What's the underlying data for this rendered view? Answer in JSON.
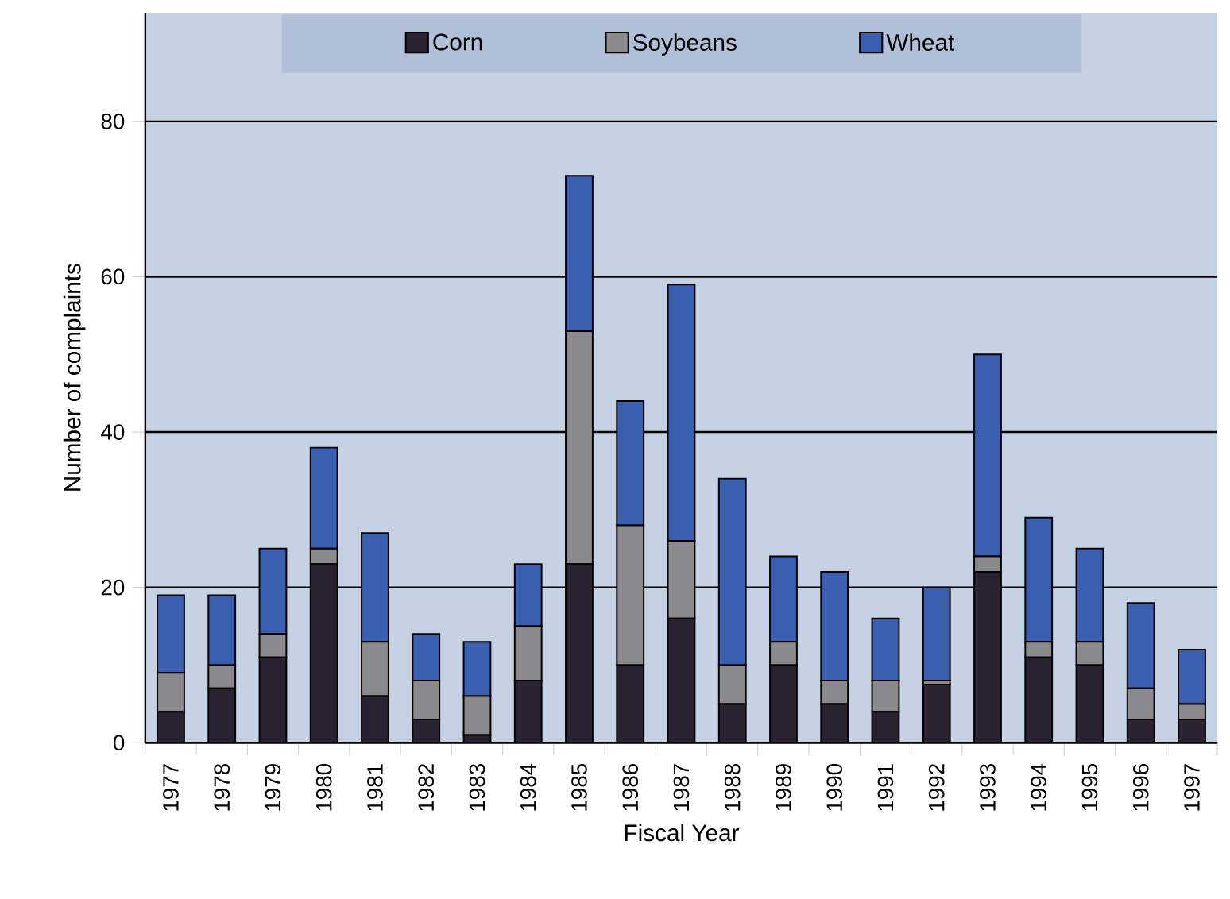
{
  "chart_data": {
    "type": "bar",
    "stacked": true,
    "xlabel": "Fiscal Year",
    "ylabel": "Number of complaints",
    "categories": [
      "1977",
      "1978",
      "1979",
      "1980",
      "1981",
      "1982",
      "1983",
      "1984",
      "1985",
      "1986",
      "1987",
      "1988",
      "1989",
      "1990",
      "1991",
      "1992",
      "1993",
      "1994",
      "1995",
      "1996",
      "1997"
    ],
    "series": [
      {
        "name": "Corn",
        "color": "#2a2230",
        "values": [
          4,
          7,
          11,
          23,
          6,
          3,
          1,
          8,
          23,
          10,
          16,
          5,
          10,
          5,
          4,
          7.5,
          22,
          11,
          10,
          3,
          3
        ]
      },
      {
        "name": "Soybeans",
        "color": "#8a8a8c",
        "values": [
          5,
          3,
          3,
          2,
          7,
          5,
          5,
          7,
          30,
          18,
          10,
          5,
          3,
          3,
          4,
          0.5,
          2,
          2,
          3,
          4,
          2
        ]
      },
      {
        "name": "Wheat",
        "color": "#3a5eb0",
        "values": [
          10,
          9,
          11,
          13,
          14,
          6,
          7,
          8,
          20,
          16,
          33,
          24,
          11,
          14,
          8,
          12,
          26,
          16,
          12,
          11,
          7
        ]
      }
    ],
    "ylim": [
      0,
      94
    ],
    "yticks": [
      0,
      20,
      40,
      60,
      80
    ],
    "grid": "y",
    "legend": "top"
  }
}
